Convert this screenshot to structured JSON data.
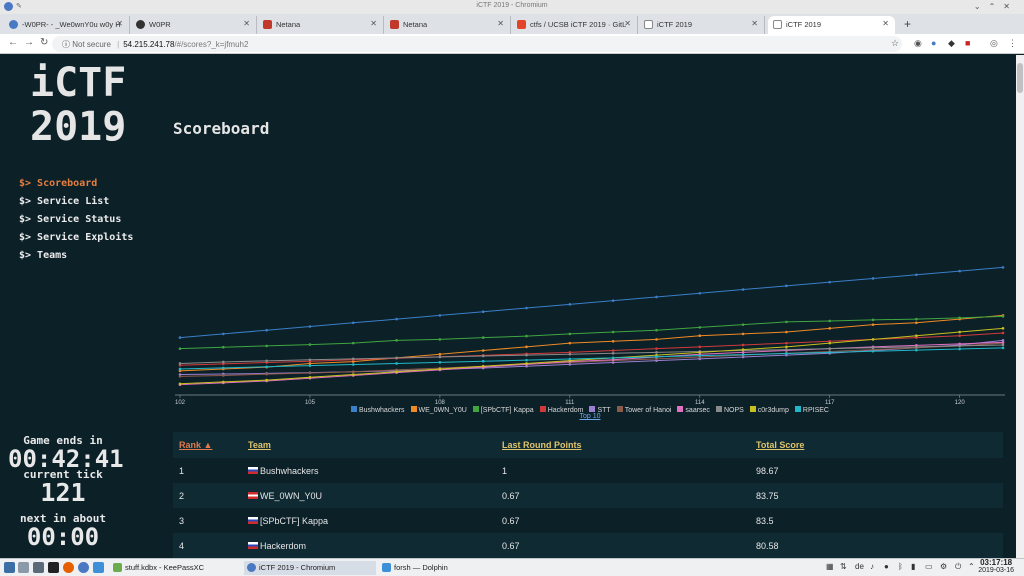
{
  "window": {
    "title": "iCTF 2019 - Chromium"
  },
  "tabs": [
    {
      "label": "-W0PR- - _We0wnY0u w0y H",
      "icon": "chromium-icon",
      "color": "#4a78c2"
    },
    {
      "label": "W0PR",
      "icon": "github-icon",
      "color": "#333333"
    },
    {
      "label": "Netana",
      "icon": "netana-icon",
      "color": "#c0392b"
    },
    {
      "label": "Netana",
      "icon": "netana-icon",
      "color": "#c0392b"
    },
    {
      "label": "ctfs / UCSB iCTF 2019 · GitL",
      "icon": "gitlab-icon",
      "color": "#e24329"
    },
    {
      "label": "iCTF 2019",
      "icon": "page-icon",
      "color": "#888888"
    },
    {
      "label": "iCTF 2019",
      "icon": "page-icon",
      "color": "#888888"
    }
  ],
  "address": {
    "security": "Not secure",
    "host": "54.215.241.78",
    "path": "/#/scores?_k=jfmuh2"
  },
  "brand": {
    "line1": "iCTF",
    "line2": "2019"
  },
  "page_title": "Scoreboard",
  "nav": [
    {
      "label": "$> Scoreboard",
      "active": true
    },
    {
      "label": "$> Service List",
      "active": false
    },
    {
      "label": "$> Service Status",
      "active": false
    },
    {
      "label": "$> Service Exploits",
      "active": false
    },
    {
      "label": "$> Teams",
      "active": false
    }
  ],
  "status": {
    "game_ends_label": "Game ends in",
    "game_ends_value": "00:42:41",
    "tick_label": "current tick",
    "tick_value": "121",
    "next_label": "next in about",
    "next_value": "00:00"
  },
  "chart_data": {
    "type": "line",
    "x": [
      102,
      103,
      104,
      105,
      106,
      107,
      108,
      109,
      110,
      111,
      112,
      113,
      114,
      115,
      116,
      117,
      118,
      119,
      120,
      121
    ],
    "xticks": [
      102,
      105,
      108,
      111,
      114,
      117,
      120
    ],
    "series": [
      {
        "name": "Bushwhackers",
        "color": "#3a7fc8",
        "values": [
          30,
          32,
          34,
          36,
          38,
          40,
          42,
          44,
          46,
          48,
          50,
          52,
          54,
          56,
          58,
          60,
          62,
          64,
          66,
          68
        ]
      },
      {
        "name": "WE_0WN_Y0U",
        "color": "#f08a24",
        "values": [
          12,
          13,
          14,
          16,
          17,
          19,
          21,
          23,
          25,
          27,
          28,
          29,
          31,
          32,
          33,
          35,
          37,
          38,
          40,
          42
        ]
      },
      {
        "name": "[SPbCTF] Kappa",
        "color": "#3fa63f",
        "values": [
          24,
          24.8,
          25.5,
          26.2,
          27,
          28.5,
          29,
          30,
          30.8,
          32,
          33,
          34,
          35.5,
          37,
          38.5,
          39,
          39.6,
          40,
          40.7,
          41.5
        ]
      },
      {
        "name": "Hackerdom",
        "color": "#d03a3a",
        "values": [
          15,
          15.8,
          16.5,
          17.2,
          18,
          18.8,
          19.6,
          20.4,
          21.2,
          22,
          23,
          24,
          25,
          26,
          27,
          28,
          29,
          30,
          31,
          32.5
        ]
      },
      {
        "name": "STT",
        "color": "#9b7fd0",
        "values": [
          10,
          10.3,
          10.6,
          11,
          11.5,
          12,
          12.8,
          13.5,
          14.5,
          15.5,
          16.5,
          17.5,
          18.5,
          19.5,
          20.5,
          21.5,
          23,
          24.5,
          26,
          28.5
        ]
      },
      {
        "name": "Tower of Hanoi",
        "color": "#8c5a4a",
        "values": [
          9,
          9.5,
          10.2,
          10.8,
          11.5,
          12.5,
          13.5,
          14.5,
          15.5,
          16.5,
          17.5,
          18.5,
          19.5,
          20.5,
          21.5,
          22.5,
          23.5,
          24.5,
          25.5,
          27
        ]
      },
      {
        "name": "saarsec",
        "color": "#e070c0",
        "values": [
          4.5,
          5.5,
          6.5,
          8,
          9.5,
          11,
          12.5,
          14,
          15.5,
          17,
          18,
          19.5,
          21,
          22,
          23,
          24,
          25,
          25.8,
          26.6,
          27.4
        ]
      },
      {
        "name": "NOPS",
        "color": "#8a8a8a",
        "values": [
          16,
          16.8,
          17.4,
          18,
          18.5,
          19,
          19.5,
          20,
          20.5,
          21,
          21.5,
          22,
          22.5,
          23,
          23.5,
          24,
          24.5,
          25,
          25.5,
          26
        ]
      },
      {
        "name": "c0r3dump",
        "color": "#c8c020",
        "values": [
          5,
          6,
          7,
          8.5,
          10,
          11.5,
          13,
          14.5,
          16,
          17.5,
          19,
          20.5,
          22,
          23.5,
          25,
          27,
          29,
          31,
          33,
          35
        ]
      },
      {
        "name": "RPISEC",
        "color": "#20b8c8",
        "values": [
          13,
          13.6,
          14.2,
          14.8,
          15.4,
          16,
          16.6,
          17.2,
          17.8,
          18.4,
          19,
          19.6,
          20.2,
          20.8,
          21.4,
          22,
          22.6,
          23.2,
          23.8,
          24.4
        ]
      }
    ],
    "link": "Top 10"
  },
  "table": {
    "headers": {
      "rank": "Rank ▲",
      "team": "Team",
      "last": "Last Round Points",
      "total": "Total Score"
    },
    "rows": [
      {
        "rank": "1",
        "team": "Bushwhackers",
        "flag": "ru",
        "last": "1",
        "total": "98.67"
      },
      {
        "rank": "2",
        "team": "WE_0WN_Y0U",
        "flag": "at",
        "last": "0.67",
        "total": "83.75"
      },
      {
        "rank": "3",
        "team": "[SPbCTF] Kappa",
        "flag": "ru",
        "last": "0.67",
        "total": "83.5"
      },
      {
        "rank": "4",
        "team": "Hackerdom",
        "flag": "ru",
        "last": "0.67",
        "total": "80.58"
      }
    ]
  },
  "taskbar": {
    "apps": [
      {
        "label": "stuff.kdbx - KeePassXC",
        "icon": "keepass-icon",
        "color": "#6cac4d"
      },
      {
        "label": "iCTF 2019 - Chromium",
        "icon": "chromium-icon",
        "color": "#4a78c2"
      },
      {
        "label": "forsh — Dolphin",
        "icon": "folder-icon",
        "color": "#3d8fd8"
      }
    ],
    "keyboard_layout": "de",
    "time": "03:17:18",
    "date": "2019-03-16"
  }
}
